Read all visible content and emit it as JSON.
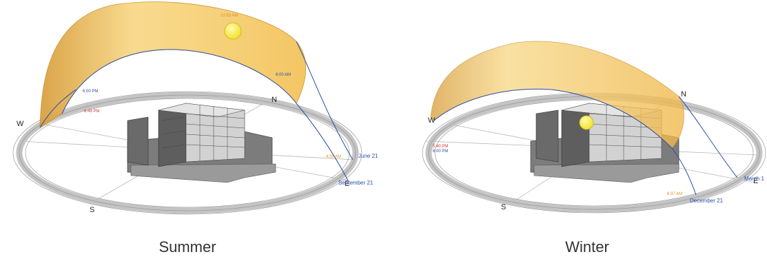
{
  "summer": {
    "caption": "Summer",
    "cardinals": {
      "n": "N",
      "s": "S",
      "e": "E",
      "w": "W"
    },
    "times": {
      "noon": "10:53 AM",
      "six_am": "6:00 AM",
      "six_pm": "6:00 PM",
      "sunset": "6:49 PM",
      "sunrise": "4:35 AM"
    },
    "dates": {
      "june": "June 21",
      "september": "September 21"
    }
  },
  "winter": {
    "caption": "Winter",
    "cardinals": {
      "n": "N",
      "s": "S",
      "e": "E",
      "w": "W"
    },
    "times": {
      "sunset": "5:40 PM",
      "six_pm": "6:00 PM",
      "sunrise": "6:37 AM"
    },
    "dates": {
      "march": "March 1",
      "december": "December 21"
    }
  },
  "colors": {
    "sun_path_fill": "#f7cc6e",
    "sun": "#f5ea2a",
    "path_line": "#2a4fa6",
    "compass_ring": "#bdbdbd",
    "building": "#8a8a8a",
    "label_blue": "#2a4fa6",
    "label_red": "#d23a2a",
    "label_orange": "#e0902a"
  }
}
